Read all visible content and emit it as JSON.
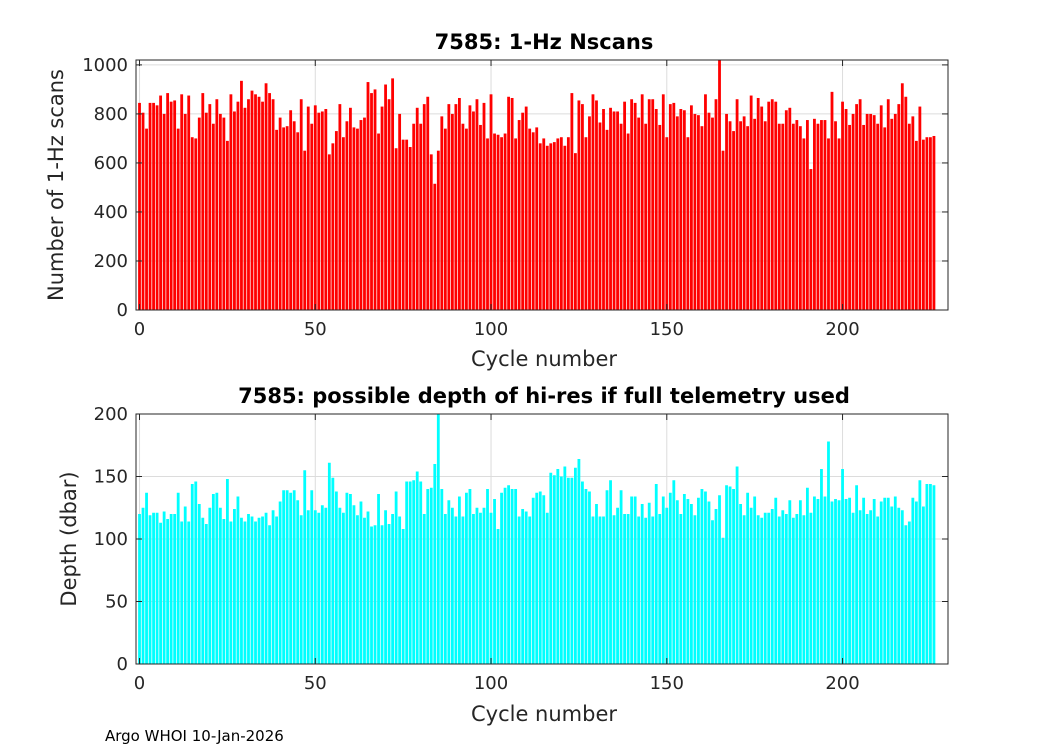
{
  "footer": "Argo WHOI 10-Jan-2026",
  "chart_data": [
    {
      "type": "bar",
      "title": "7585: 1-Hz Nscans",
      "xlabel": "Cycle number",
      "ylabel": "Number of 1-Hz scans",
      "xlim": [
        -1,
        230
      ],
      "ylim": [
        0,
        1020
      ],
      "xticks": [
        0,
        50,
        100,
        150,
        200
      ],
      "yticks": [
        0,
        200,
        400,
        600,
        800,
        1000
      ],
      "grid": true,
      "bar_color": "#ff0000",
      "x_start": 0,
      "values": [
        845,
        805,
        740,
        845,
        845,
        835,
        875,
        800,
        885,
        850,
        855,
        740,
        880,
        800,
        875,
        705,
        700,
        785,
        885,
        805,
        840,
        760,
        860,
        800,
        785,
        690,
        880,
        810,
        850,
        935,
        825,
        860,
        895,
        880,
        870,
        850,
        925,
        885,
        860,
        735,
        785,
        745,
        750,
        815,
        770,
        725,
        860,
        650,
        830,
        760,
        835,
        805,
        810,
        820,
        635,
        680,
        730,
        840,
        705,
        770,
        825,
        745,
        740,
        775,
        785,
        930,
        885,
        900,
        720,
        830,
        920,
        860,
        945,
        660,
        800,
        695,
        695,
        665,
        760,
        825,
        760,
        840,
        870,
        635,
        515,
        650,
        790,
        740,
        840,
        800,
        840,
        865,
        760,
        740,
        835,
        810,
        860,
        755,
        845,
        700,
        880,
        720,
        715,
        705,
        720,
        870,
        865,
        700,
        775,
        805,
        830,
        740,
        725,
        745,
        680,
        700,
        670,
        680,
        685,
        700,
        705,
        670,
        705,
        885,
        640,
        855,
        840,
        705,
        790,
        880,
        855,
        765,
        820,
        735,
        825,
        810,
        810,
        760,
        850,
        720,
        860,
        845,
        785,
        880,
        760,
        860,
        860,
        820,
        755,
        880,
        705,
        840,
        845,
        790,
        820,
        815,
        705,
        835,
        800,
        795,
        750,
        880,
        805,
        785,
        860,
        1020,
        650,
        800,
        770,
        730,
        860,
        770,
        790,
        750,
        875,
        780,
        865,
        830,
        770,
        850,
        860,
        850,
        760,
        760,
        815,
        825,
        760,
        775,
        750,
        700,
        775,
        575,
        780,
        760,
        775,
        775,
        700,
        890,
        770,
        700,
        850,
        820,
        755,
        800,
        840,
        860,
        755,
        800,
        800,
        795,
        760,
        835,
        745,
        860,
        780,
        800,
        840,
        925,
        870,
        760,
        790,
        690,
        830,
        695,
        705,
        705,
        710
      ]
    },
    {
      "type": "bar",
      "title": "7585: possible depth of hi-res if full telemetry used",
      "xlabel": "Cycle number",
      "ylabel": "Depth (dbar)",
      "xlim": [
        -1,
        230
      ],
      "ylim": [
        0,
        200
      ],
      "xticks": [
        0,
        50,
        100,
        150,
        200
      ],
      "yticks": [
        0,
        50,
        100,
        150,
        200
      ],
      "grid": true,
      "bar_color": "#00ffff",
      "x_start": 0,
      "values": [
        120,
        125,
        137,
        119,
        121,
        121,
        113,
        122,
        116,
        120,
        120,
        137,
        114,
        126,
        114,
        144,
        146,
        128,
        117,
        112,
        125,
        136,
        137,
        125,
        116,
        148,
        114,
        124,
        134,
        117,
        114,
        120,
        118,
        114,
        117,
        118,
        121,
        111,
        123,
        118,
        130,
        139,
        139,
        137,
        139,
        131,
        119,
        155,
        123,
        139,
        123,
        121,
        127,
        125,
        161,
        149,
        138,
        125,
        121,
        137,
        136,
        127,
        119,
        130,
        117,
        122,
        110,
        111,
        136,
        111,
        123,
        112,
        120,
        138,
        118,
        108,
        146,
        146,
        147,
        154,
        146,
        120,
        140,
        141,
        160,
        200,
        140,
        120,
        131,
        125,
        118,
        134,
        118,
        137,
        140,
        120,
        125,
        121,
        125,
        140,
        121,
        132,
        108,
        137,
        141,
        143,
        140,
        140,
        118,
        124,
        122,
        118,
        133,
        137,
        138,
        135,
        121,
        153,
        151,
        156,
        150,
        158,
        149,
        149,
        157,
        164,
        146,
        140,
        138,
        118,
        128,
        118,
        118,
        139,
        147,
        119,
        125,
        139,
        120,
        120,
        134,
        134,
        118,
        128,
        117,
        129,
        118,
        144,
        120,
        134,
        125,
        137,
        147,
        131,
        120,
        136,
        132,
        128,
        119,
        133,
        140,
        138,
        130,
        115,
        124,
        135,
        101,
        143,
        142,
        140,
        158,
        128,
        119,
        137,
        125,
        134,
        119,
        117,
        121,
        121,
        124,
        133,
        118,
        123,
        120,
        131,
        117,
        120,
        131,
        119,
        141,
        121,
        134,
        132,
        156,
        134,
        178,
        130,
        132,
        131,
        156,
        132,
        133,
        121,
        143,
        123,
        133,
        120,
        123,
        132,
        118,
        130,
        133,
        133,
        126,
        134,
        125,
        123,
        111,
        114,
        133,
        130,
        147,
        126,
        144,
        144,
        143
      ]
    }
  ]
}
